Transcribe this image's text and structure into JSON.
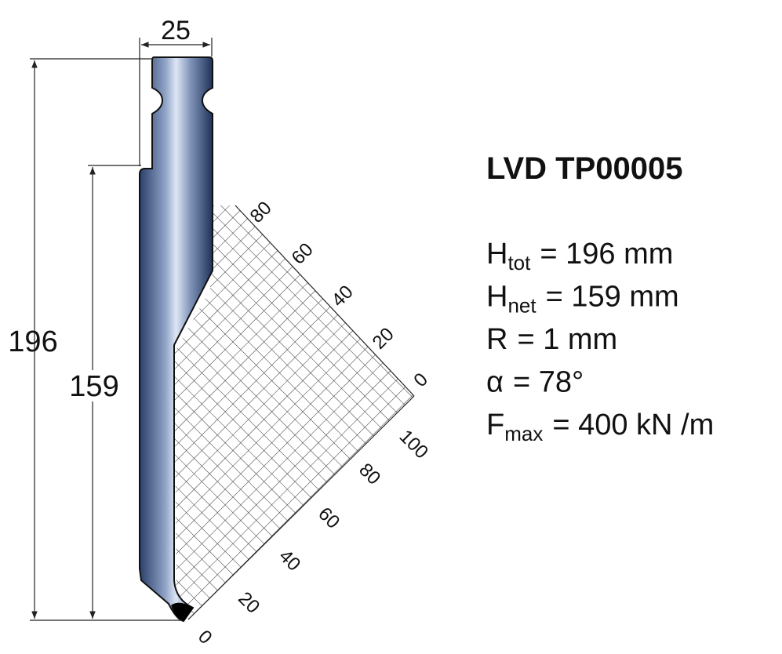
{
  "title": "LVD TP00005",
  "dimensions": {
    "width": "25",
    "total_height": "196",
    "net_height": "159"
  },
  "specs": [
    {
      "symbol": "H",
      "subscript": "tot",
      "value": "= 196 mm"
    },
    {
      "symbol": "H",
      "subscript": "net",
      "value": "= 159 mm"
    },
    {
      "symbol": "R",
      "value": "= 1 mm"
    },
    {
      "symbol": "α",
      "value": "= 78°"
    },
    {
      "symbol": "F",
      "subscript": "max",
      "value": "= 400 kN /m"
    }
  ],
  "scale_upper": [
    80,
    60,
    40,
    20,
    0
  ],
  "scale_lower": [
    100,
    80,
    60,
    40,
    20,
    0
  ]
}
